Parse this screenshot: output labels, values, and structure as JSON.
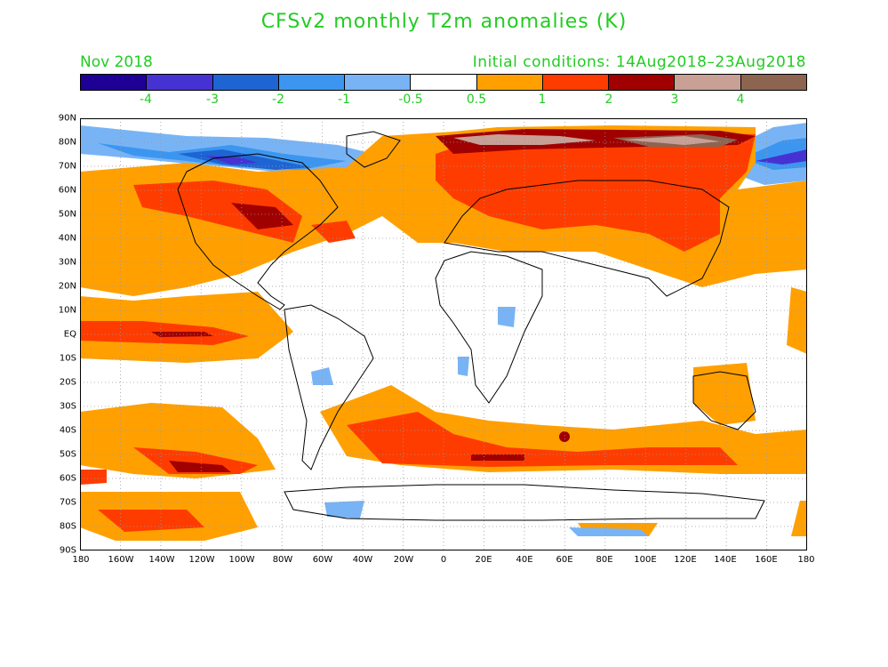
{
  "title": "CFSv2 monthly T2m anomalies (K)",
  "subtitle_left": "Nov 2018",
  "subtitle_right": "Initial conditions: 14Aug2018–23Aug2018",
  "colorbar": {
    "colors": [
      "#1e0096",
      "#4632d2",
      "#1e64d2",
      "#3c96f0",
      "#78b4f5",
      "#ffffff",
      "#ffa000",
      "#ff3c00",
      "#a00000",
      "#c8a096",
      "#8c6450"
    ],
    "labels": [
      "-4",
      "-3",
      "-2",
      "-1",
      "-0.5",
      "0.5",
      "1",
      "2",
      "3",
      "4"
    ]
  },
  "lat_labels": [
    "90N",
    "80N",
    "70N",
    "60N",
    "50N",
    "40N",
    "30N",
    "20N",
    "10N",
    "EQ",
    "10S",
    "20S",
    "30S",
    "40S",
    "50S",
    "60S",
    "70S",
    "80S",
    "90S"
  ],
  "lon_labels": [
    "180",
    "160W",
    "140W",
    "120W",
    "100W",
    "80W",
    "60W",
    "40W",
    "20W",
    "0",
    "20E",
    "40E",
    "60E",
    "80E",
    "100E",
    "120E",
    "140E",
    "160E",
    "180"
  ]
}
